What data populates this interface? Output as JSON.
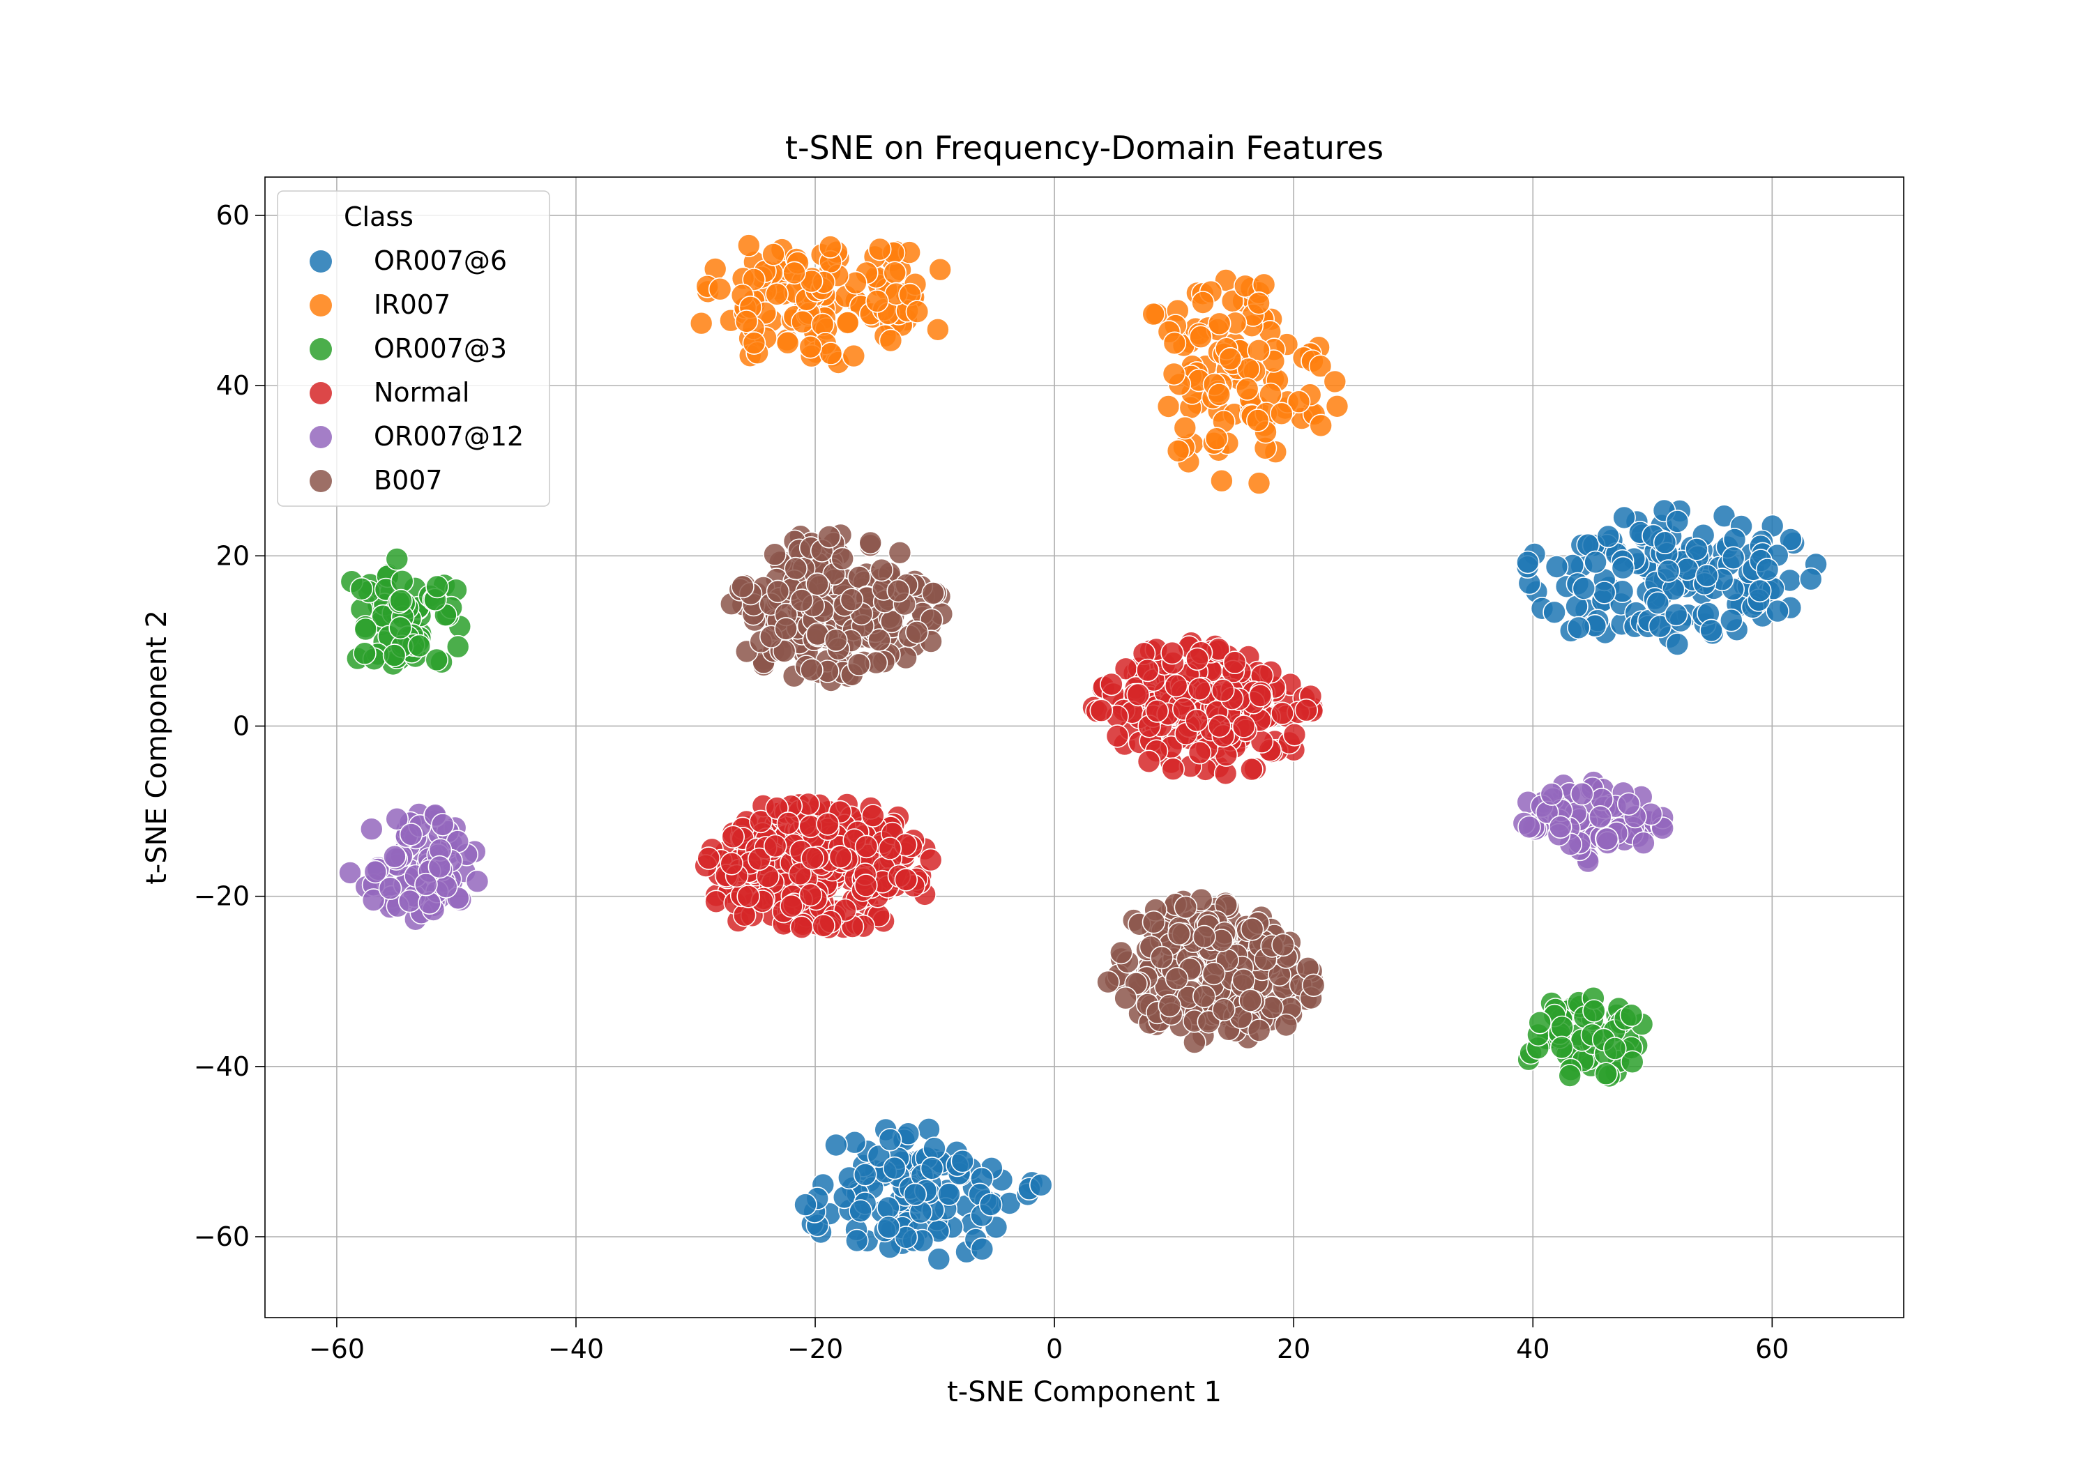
{
  "chart_data": {
    "type": "scatter",
    "title": "t-SNE on Frequency-Domain Features",
    "xlabel": "t-SNE Component 1",
    "ylabel": "t-SNE Component 2",
    "xlim": [
      -66,
      71
    ],
    "ylim": [
      -69.5,
      64.5
    ],
    "xticks": [
      -60,
      -40,
      -20,
      0,
      20,
      40,
      60
    ],
    "yticks": [
      -60,
      -40,
      -20,
      0,
      20,
      40,
      60
    ],
    "xtick_labels": [
      "−60",
      "−40",
      "−20",
      "0",
      "20",
      "40",
      "60"
    ],
    "ytick_labels": [
      "−60",
      "−40",
      "−20",
      "0",
      "20",
      "40",
      "60"
    ],
    "grid": true,
    "legend": {
      "title": "Class",
      "position": "upper-left"
    },
    "series": [
      {
        "name": "OR007@6",
        "color": "#1f77b4",
        "clusters": [
          {
            "label": "right",
            "x": [
              39,
              64
            ],
            "y": [
              9,
              26
            ],
            "count": 150
          },
          {
            "label": "bottom",
            "x": [
              -22,
              -1
            ],
            "y": [
              -63,
              -47
            ],
            "count": 120
          }
        ]
      },
      {
        "name": "IR007",
        "color": "#ff7f0e",
        "clusters": [
          {
            "label": "top-left",
            "x": [
              -31,
              -8
            ],
            "y": [
              42,
              58
            ],
            "count": 130
          },
          {
            "label": "top-right",
            "x": [
              6,
              24
            ],
            "y": [
              28,
              53
            ],
            "count": 120
          }
        ]
      },
      {
        "name": "OR007@3",
        "color": "#2ca02c",
        "clusters": [
          {
            "label": "left",
            "x": [
              -60,
              -49
            ],
            "y": [
              6,
              20
            ],
            "count": 70
          },
          {
            "label": "bottom-right",
            "x": [
              37,
              50
            ],
            "y": [
              -42,
              -31
            ],
            "count": 60
          }
        ]
      },
      {
        "name": "Normal",
        "color": "#d62728",
        "clusters": [
          {
            "label": "center",
            "x": [
              3,
              22
            ],
            "y": [
              -6,
              10
            ],
            "count": 220
          },
          {
            "label": "left-center",
            "x": [
              -30,
              -10
            ],
            "y": [
              -25,
              -8
            ],
            "count": 320
          }
        ]
      },
      {
        "name": "OR007@12",
        "color": "#9467bd",
        "clusters": [
          {
            "label": "left",
            "x": [
              -59,
              -48
            ],
            "y": [
              -24,
              -10
            ],
            "count": 90
          },
          {
            "label": "right",
            "x": [
              39,
              51
            ],
            "y": [
              -16,
              -6
            ],
            "count": 80
          }
        ]
      },
      {
        "name": "B007",
        "color": "#8c564b",
        "clusters": [
          {
            "label": "upper-left",
            "x": [
              -28,
              -9
            ],
            "y": [
              5,
              23
            ],
            "count": 230
          },
          {
            "label": "lower-right",
            "x": [
              4,
              22
            ],
            "y": [
              -38,
              -20
            ],
            "count": 230
          }
        ]
      }
    ]
  }
}
